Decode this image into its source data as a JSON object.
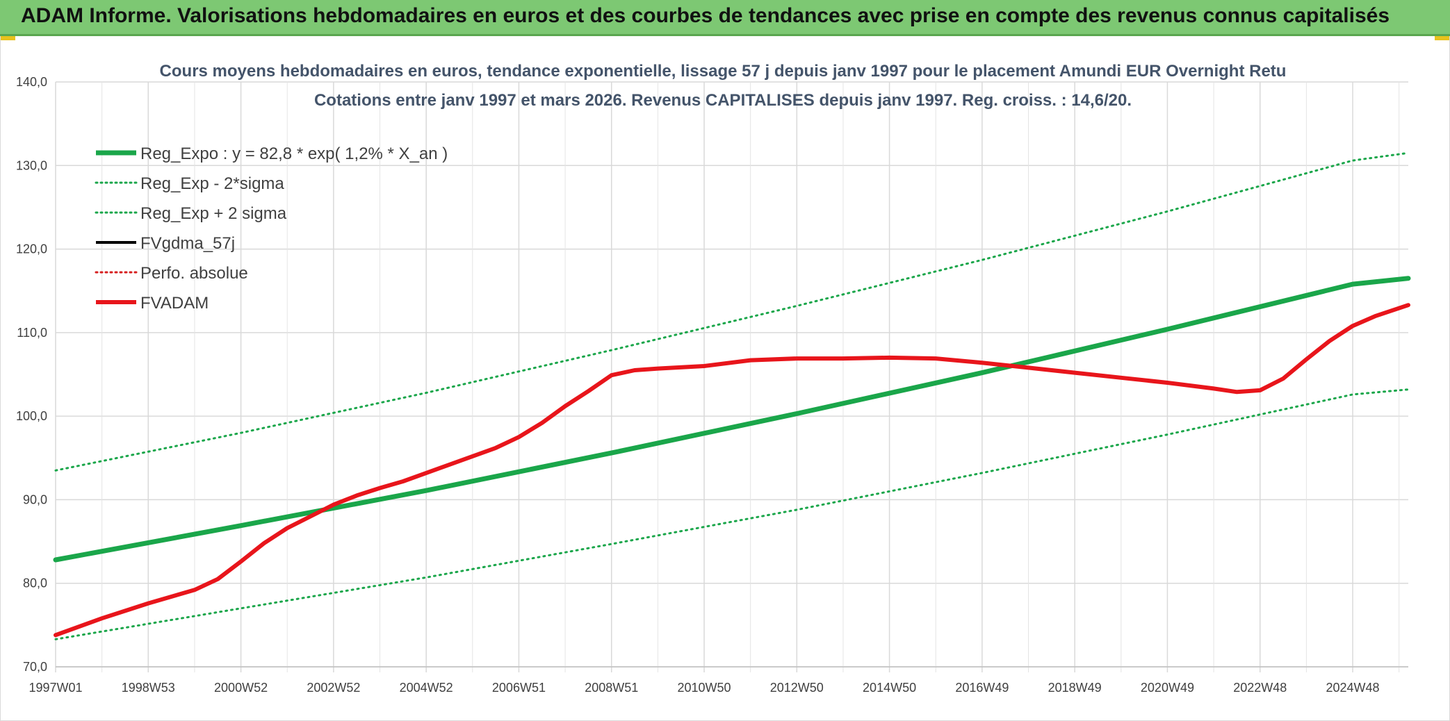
{
  "banner": {
    "title": "ADAM Informe. Valorisations hebdomadaires en euros et des courbes de tendances avec prise en compte des revenus connus capitalisés",
    "color": "#7dc873"
  },
  "chart_data": {
    "type": "line",
    "title": "Cours moyens hebdomadaires en euros, tendance exponentielle, lissage 57 j depuis janv 1997 pour le placement Amundi EUR Overnight Retu",
    "subtitle": "Cotations entre janv 1997 et mars 2026. Revenus CAPITALISES depuis janv 1997. Reg. croiss. : 14,6/20.",
    "xlabel": "",
    "ylabel": "",
    "ylim": [
      70,
      140
    ],
    "y_ticks": [
      "70,0",
      "80,0",
      "90,0",
      "100,0",
      "110,0",
      "120,0",
      "130,0",
      "140,0"
    ],
    "x_range": [
      1997.0,
      2026.2
    ],
    "x_ticks": [
      {
        "label": "1997W01",
        "x": 1997.0
      },
      {
        "label": "1998W53",
        "x": 1999.0
      },
      {
        "label": "2000W52",
        "x": 2001.0
      },
      {
        "label": "2002W52",
        "x": 2003.0
      },
      {
        "label": "2004W52",
        "x": 2005.0
      },
      {
        "label": "2006W51",
        "x": 2007.0
      },
      {
        "label": "2008W51",
        "x": 2009.0
      },
      {
        "label": "2010W50",
        "x": 2011.0
      },
      {
        "label": "2012W50",
        "x": 2013.0
      },
      {
        "label": "2014W50",
        "x": 2015.0
      },
      {
        "label": "2016W49",
        "x": 2017.0
      },
      {
        "label": "2018W49",
        "x": 2019.0
      },
      {
        "label": "2020W49",
        "x": 2021.0
      },
      {
        "label": "2022W48",
        "x": 2023.0
      },
      {
        "label": "2024W48",
        "x": 2025.0
      }
    ],
    "grid": true,
    "legend_position": "top-left",
    "series": [
      {
        "name": "Reg_Expo : y = 82,8 * exp( 1,2% *  X_an )",
        "color": "#1aa64a",
        "style": "solid",
        "width": 7,
        "x": [
          1997.0,
          2001.0,
          2005.0,
          2009.0,
          2013.0,
          2017.0,
          2021.0,
          2025.0,
          2026.2
        ],
        "values": [
          82.8,
          86.9,
          91.1,
          95.6,
          100.3,
          105.2,
          110.4,
          115.8,
          116.5
        ]
      },
      {
        "name": "Reg_Exp - 2*sigma",
        "color": "#1aa64a",
        "style": "dotted",
        "width": 4,
        "x": [
          1997.0,
          2001.0,
          2005.0,
          2009.0,
          2013.0,
          2017.0,
          2021.0,
          2025.0,
          2026.2
        ],
        "values": [
          73.3,
          77.0,
          80.7,
          84.7,
          88.8,
          93.2,
          97.8,
          102.6,
          103.2
        ]
      },
      {
        "name": "Reg_Exp + 2 sigma",
        "color": "#1aa64a",
        "style": "dotted",
        "width": 4,
        "x": [
          1997.0,
          2001.0,
          2005.0,
          2009.0,
          2013.0,
          2017.0,
          2021.0,
          2025.0,
          2026.2
        ],
        "values": [
          93.5,
          98.0,
          102.8,
          107.9,
          113.2,
          118.7,
          124.5,
          130.6,
          131.5
        ]
      },
      {
        "name": "FVgdma_57j",
        "color": "#000000",
        "style": "solid",
        "width": 4,
        "x": [],
        "values": []
      },
      {
        "name": "Perfo. absolue",
        "color": "#d61f1f",
        "style": "dotted",
        "width": 3,
        "x": [],
        "values": []
      },
      {
        "name": "FVADAM",
        "color": "#e8151b",
        "style": "solid",
        "width": 6,
        "x": [
          1997.0,
          1998.0,
          1999.0,
          2000.0,
          2000.5,
          2001.0,
          2001.5,
          2002.0,
          2002.5,
          2003.0,
          2003.5,
          2004.0,
          2004.5,
          2005.0,
          2005.5,
          2006.0,
          2006.5,
          2007.0,
          2007.5,
          2008.0,
          2008.5,
          2009.0,
          2009.5,
          2010.0,
          2011.0,
          2012.0,
          2013.0,
          2014.0,
          2015.0,
          2016.0,
          2017.0,
          2018.0,
          2019.0,
          2020.0,
          2021.0,
          2022.0,
          2022.5,
          2023.0,
          2023.5,
          2024.0,
          2024.5,
          2025.0,
          2025.5,
          2026.2
        ],
        "values": [
          73.8,
          75.8,
          77.6,
          79.2,
          80.5,
          82.6,
          84.8,
          86.6,
          88.0,
          89.4,
          90.5,
          91.4,
          92.2,
          93.2,
          94.2,
          95.2,
          96.2,
          97.5,
          99.2,
          101.2,
          103.0,
          104.9,
          105.5,
          105.7,
          106.0,
          106.7,
          106.9,
          106.9,
          107.0,
          106.9,
          106.4,
          105.8,
          105.2,
          104.6,
          104.0,
          103.3,
          102.9,
          103.1,
          104.5,
          106.8,
          109.0,
          110.8,
          112.0,
          113.3
        ]
      }
    ]
  }
}
